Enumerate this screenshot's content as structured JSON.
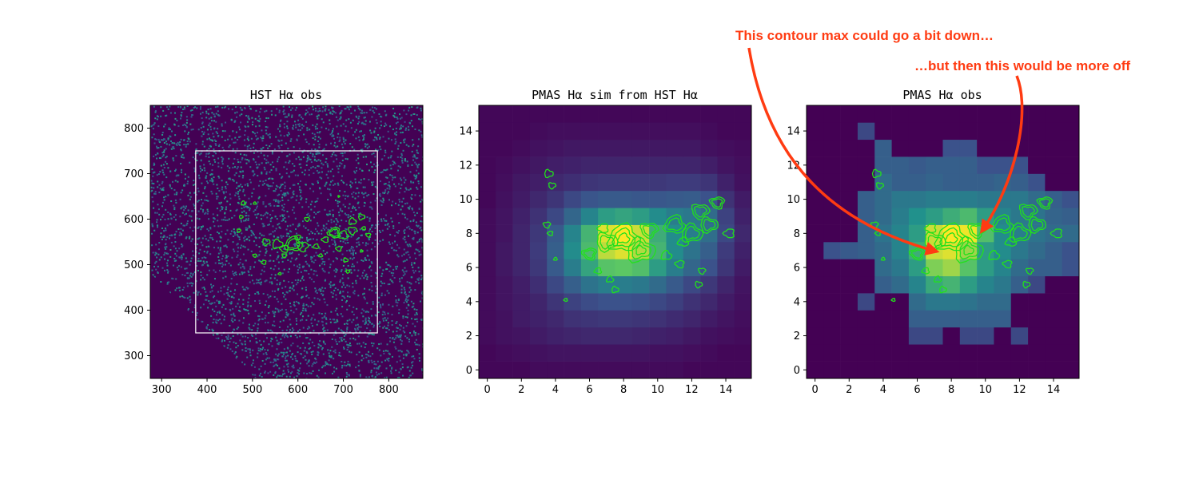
{
  "figure": {
    "colors": {
      "contour": "#22e01c",
      "box": "#ffffff",
      "annotation": "#ff3b12",
      "colormap": [
        "#440154",
        "#3b528b",
        "#21918c",
        "#5ec962",
        "#fde725"
      ]
    },
    "annotations": [
      {
        "text": "This contour max could go a bit down…"
      },
      {
        "text": "…but then this would be more off"
      }
    ]
  },
  "chart_data": [
    {
      "type": "heatmap",
      "title": "HST Hα obs",
      "xlabel": "",
      "ylabel": "",
      "xlim": [
        275,
        875
      ],
      "ylim": [
        250,
        850
      ],
      "xticks": [
        300,
        400,
        500,
        600,
        700,
        800
      ],
      "yticks": [
        300,
        400,
        500,
        600,
        700,
        800
      ],
      "noise_background": true,
      "overlay_box": {
        "x0": 375,
        "x1": 775,
        "y0": 350,
        "y1": 750
      },
      "contour_blobs": [
        {
          "x": 590,
          "y": 545,
          "r": 18
        },
        {
          "x": 555,
          "y": 545,
          "r": 11
        },
        {
          "x": 530,
          "y": 550,
          "r": 8
        },
        {
          "x": 610,
          "y": 540,
          "r": 12
        },
        {
          "x": 570,
          "y": 535,
          "r": 9
        },
        {
          "x": 680,
          "y": 570,
          "r": 13
        },
        {
          "x": 700,
          "y": 565,
          "r": 10
        },
        {
          "x": 720,
          "y": 595,
          "r": 8
        },
        {
          "x": 740,
          "y": 605,
          "r": 7
        },
        {
          "x": 720,
          "y": 575,
          "r": 9
        },
        {
          "x": 755,
          "y": 565,
          "r": 5
        },
        {
          "x": 660,
          "y": 555,
          "r": 7
        },
        {
          "x": 640,
          "y": 540,
          "r": 6
        },
        {
          "x": 480,
          "y": 635,
          "r": 5
        },
        {
          "x": 475,
          "y": 605,
          "r": 4
        },
        {
          "x": 470,
          "y": 575,
          "r": 4
        },
        {
          "x": 505,
          "y": 520,
          "r": 4
        },
        {
          "x": 525,
          "y": 505,
          "r": 5
        },
        {
          "x": 560,
          "y": 480,
          "r": 3
        },
        {
          "x": 505,
          "y": 635,
          "r": 3
        },
        {
          "x": 705,
          "y": 510,
          "r": 5
        },
        {
          "x": 710,
          "y": 485,
          "r": 4
        },
        {
          "x": 620,
          "y": 600,
          "r": 5
        },
        {
          "x": 690,
          "y": 535,
          "r": 6
        },
        {
          "x": 745,
          "y": 580,
          "r": 4
        },
        {
          "x": 650,
          "y": 520,
          "r": 4
        },
        {
          "x": 740,
          "y": 530,
          "r": 3
        },
        {
          "x": 690,
          "y": 650,
          "r": 2
        },
        {
          "x": 570,
          "y": 520,
          "r": 5
        },
        {
          "x": 600,
          "y": 560,
          "r": 6
        }
      ]
    },
    {
      "type": "heatmap",
      "title": "PMAS Hα sim from HST Hα",
      "xlabel": "",
      "ylabel": "",
      "xlim": [
        -0.5,
        15.5
      ],
      "ylim": [
        -0.5,
        15.5
      ],
      "xticks": [
        0,
        2,
        4,
        6,
        8,
        10,
        12,
        14
      ],
      "yticks": [
        0,
        2,
        4,
        6,
        8,
        10,
        12,
        14
      ],
      "grid": [
        [
          0.02,
          0.02,
          0.02,
          0.03,
          0.03,
          0.03,
          0.03,
          0.03,
          0.03,
          0.03,
          0.03,
          0.03,
          0.02,
          0.02,
          0.02,
          0.02
        ],
        [
          0.02,
          0.03,
          0.04,
          0.05,
          0.06,
          0.06,
          0.06,
          0.06,
          0.06,
          0.06,
          0.05,
          0.05,
          0.04,
          0.03,
          0.02,
          0.02
        ],
        [
          0.03,
          0.05,
          0.06,
          0.08,
          0.1,
          0.11,
          0.12,
          0.12,
          0.12,
          0.11,
          0.1,
          0.09,
          0.07,
          0.05,
          0.04,
          0.03
        ],
        [
          0.03,
          0.05,
          0.08,
          0.1,
          0.12,
          0.15,
          0.16,
          0.17,
          0.17,
          0.16,
          0.15,
          0.13,
          0.11,
          0.08,
          0.06,
          0.04
        ],
        [
          0.03,
          0.06,
          0.08,
          0.11,
          0.16,
          0.2,
          0.23,
          0.25,
          0.25,
          0.24,
          0.22,
          0.19,
          0.15,
          0.12,
          0.08,
          0.05
        ],
        [
          0.03,
          0.06,
          0.09,
          0.14,
          0.22,
          0.3,
          0.38,
          0.42,
          0.42,
          0.4,
          0.35,
          0.28,
          0.22,
          0.17,
          0.11,
          0.06
        ],
        [
          0.03,
          0.07,
          0.11,
          0.17,
          0.28,
          0.42,
          0.58,
          0.72,
          0.74,
          0.7,
          0.55,
          0.42,
          0.33,
          0.25,
          0.16,
          0.08
        ],
        [
          0.03,
          0.07,
          0.11,
          0.18,
          0.3,
          0.48,
          0.68,
          0.9,
          0.95,
          0.88,
          0.65,
          0.48,
          0.38,
          0.3,
          0.18,
          0.1
        ],
        [
          0.03,
          0.06,
          0.11,
          0.17,
          0.28,
          0.45,
          0.65,
          0.95,
          1.0,
          0.92,
          0.62,
          0.48,
          0.42,
          0.36,
          0.22,
          0.12
        ],
        [
          0.03,
          0.06,
          0.1,
          0.15,
          0.22,
          0.33,
          0.45,
          0.55,
          0.58,
          0.55,
          0.48,
          0.42,
          0.4,
          0.35,
          0.2,
          0.1
        ],
        [
          0.02,
          0.05,
          0.08,
          0.12,
          0.16,
          0.22,
          0.26,
          0.28,
          0.28,
          0.27,
          0.27,
          0.28,
          0.29,
          0.25,
          0.15,
          0.08
        ],
        [
          0.02,
          0.04,
          0.07,
          0.09,
          0.12,
          0.14,
          0.16,
          0.17,
          0.17,
          0.17,
          0.17,
          0.18,
          0.18,
          0.16,
          0.1,
          0.05
        ],
        [
          0.02,
          0.03,
          0.05,
          0.07,
          0.09,
          0.1,
          0.11,
          0.11,
          0.11,
          0.11,
          0.11,
          0.11,
          0.11,
          0.09,
          0.06,
          0.04
        ],
        [
          0.02,
          0.02,
          0.03,
          0.05,
          0.06,
          0.07,
          0.07,
          0.07,
          0.07,
          0.07,
          0.07,
          0.07,
          0.07,
          0.05,
          0.04,
          0.03
        ],
        [
          0.02,
          0.02,
          0.02,
          0.03,
          0.04,
          0.04,
          0.04,
          0.04,
          0.04,
          0.04,
          0.04,
          0.04,
          0.04,
          0.03,
          0.02,
          0.02
        ],
        [
          0.02,
          0.02,
          0.02,
          0.02,
          0.02,
          0.02,
          0.02,
          0.02,
          0.02,
          0.02,
          0.02,
          0.02,
          0.02,
          0.02,
          0.02,
          0.02
        ]
      ],
      "contour_blobs": [
        {
          "x": 8.0,
          "y": 7.7,
          "r": 0.9
        },
        {
          "x": 9.0,
          "y": 7.0,
          "r": 0.8
        },
        {
          "x": 7.0,
          "y": 7.5,
          "r": 0.6
        },
        {
          "x": 9.5,
          "y": 8.2,
          "r": 0.5
        },
        {
          "x": 6.0,
          "y": 6.8,
          "r": 0.4
        },
        {
          "x": 6.8,
          "y": 8.3,
          "r": 0.3
        },
        {
          "x": 11.0,
          "y": 8.5,
          "r": 0.6
        },
        {
          "x": 12.0,
          "y": 8.0,
          "r": 0.6
        },
        {
          "x": 13.0,
          "y": 8.5,
          "r": 0.5
        },
        {
          "x": 12.5,
          "y": 9.3,
          "r": 0.5
        },
        {
          "x": 13.5,
          "y": 9.8,
          "r": 0.4
        },
        {
          "x": 14.2,
          "y": 8.0,
          "r": 0.3
        },
        {
          "x": 11.5,
          "y": 7.5,
          "r": 0.3
        },
        {
          "x": 10.5,
          "y": 6.7,
          "r": 0.3
        },
        {
          "x": 3.6,
          "y": 11.5,
          "r": 0.25
        },
        {
          "x": 3.8,
          "y": 10.8,
          "r": 0.2
        },
        {
          "x": 3.5,
          "y": 8.5,
          "r": 0.2
        },
        {
          "x": 3.7,
          "y": 8.0,
          "r": 0.15
        },
        {
          "x": 6.5,
          "y": 5.8,
          "r": 0.2
        },
        {
          "x": 7.2,
          "y": 5.3,
          "r": 0.2
        },
        {
          "x": 7.5,
          "y": 4.7,
          "r": 0.2
        },
        {
          "x": 12.4,
          "y": 5.0,
          "r": 0.2
        },
        {
          "x": 12.6,
          "y": 5.8,
          "r": 0.2
        },
        {
          "x": 11.3,
          "y": 6.2,
          "r": 0.25
        },
        {
          "x": 4.6,
          "y": 4.1,
          "r": 0.1
        },
        {
          "x": 4.0,
          "y": 6.5,
          "r": 0.1
        }
      ]
    },
    {
      "type": "heatmap",
      "title": "PMAS Hα obs",
      "xlabel": "",
      "ylabel": "",
      "xlim": [
        -0.5,
        15.5
      ],
      "ylim": [
        -0.5,
        15.5
      ],
      "xticks": [
        0,
        2,
        4,
        6,
        8,
        10,
        12,
        14
      ],
      "yticks": [
        0,
        2,
        4,
        6,
        8,
        10,
        12,
        14
      ],
      "grid": [
        [
          0,
          0,
          0,
          0,
          0,
          0,
          0,
          0,
          0,
          0,
          0,
          0,
          0,
          0,
          0,
          0
        ],
        [
          0,
          0,
          0,
          0,
          0,
          0,
          0,
          0,
          0,
          0,
          0,
          0,
          0,
          0,
          0,
          0
        ],
        [
          0,
          0,
          0,
          0,
          0,
          0,
          0.22,
          0.22,
          0,
          0.22,
          0.22,
          0,
          0.22,
          0,
          0,
          0
        ],
        [
          0,
          0,
          0,
          0,
          0,
          0,
          0.3,
          0.3,
          0.3,
          0.3,
          0.3,
          0.3,
          0,
          0,
          0,
          0
        ],
        [
          0,
          0,
          0,
          0.22,
          0,
          0,
          0.35,
          0.4,
          0.4,
          0.38,
          0.35,
          0.35,
          0,
          0,
          0,
          0
        ],
        [
          0,
          0,
          0,
          0,
          0.3,
          0.35,
          0.45,
          0.6,
          0.65,
          0.55,
          0.45,
          0.4,
          0.3,
          0.22,
          0,
          0
        ],
        [
          0,
          0,
          0,
          0,
          0.35,
          0.4,
          0.55,
          0.8,
          0.85,
          0.72,
          0.55,
          0.45,
          0.35,
          0.3,
          0.3,
          0.25
        ],
        [
          0,
          0.25,
          0.28,
          0.3,
          0.35,
          0.45,
          0.62,
          0.92,
          0.95,
          0.85,
          0.55,
          0.48,
          0.4,
          0.35,
          0.3,
          0.25
        ],
        [
          0,
          0,
          0,
          0.3,
          0.38,
          0.45,
          0.55,
          0.92,
          1.0,
          0.98,
          0.7,
          0.48,
          0.42,
          0.38,
          0.35,
          0.35
        ],
        [
          0,
          0,
          0,
          0.3,
          0.35,
          0.42,
          0.5,
          0.55,
          0.62,
          0.68,
          0.55,
          0.45,
          0.4,
          0.38,
          0.32,
          0.3
        ],
        [
          0,
          0,
          0,
          0.3,
          0.35,
          0.4,
          0.4,
          0.42,
          0.42,
          0.42,
          0.4,
          0.4,
          0.4,
          0.35,
          0.3,
          0.25
        ],
        [
          0,
          0,
          0,
          0,
          0.35,
          0.3,
          0.3,
          0.32,
          0.3,
          0.3,
          0.3,
          0.32,
          0.3,
          0.25,
          0,
          0
        ],
        [
          0,
          0,
          0,
          0,
          0.3,
          0.3,
          0.28,
          0.3,
          0.3,
          0.3,
          0.25,
          0.25,
          0.25,
          0,
          0,
          0
        ],
        [
          0,
          0,
          0,
          0,
          0.3,
          0,
          0,
          0,
          0.25,
          0.25,
          0,
          0,
          0,
          0,
          0,
          0
        ],
        [
          0,
          0,
          0,
          0.22,
          0,
          0,
          0,
          0,
          0,
          0,
          0,
          0,
          0,
          0,
          0,
          0
        ],
        [
          0,
          0,
          0,
          0,
          0,
          0,
          0,
          0,
          0,
          0,
          0,
          0,
          0,
          0,
          0,
          0
        ]
      ],
      "contour_blobs": [
        {
          "x": 8.0,
          "y": 7.7,
          "r": 0.9
        },
        {
          "x": 9.0,
          "y": 7.0,
          "r": 0.8
        },
        {
          "x": 7.0,
          "y": 7.5,
          "r": 0.6
        },
        {
          "x": 9.5,
          "y": 8.2,
          "r": 0.5
        },
        {
          "x": 6.0,
          "y": 6.8,
          "r": 0.4
        },
        {
          "x": 6.8,
          "y": 8.3,
          "r": 0.3
        },
        {
          "x": 11.0,
          "y": 8.5,
          "r": 0.6
        },
        {
          "x": 12.0,
          "y": 8.0,
          "r": 0.6
        },
        {
          "x": 13.0,
          "y": 8.5,
          "r": 0.5
        },
        {
          "x": 12.5,
          "y": 9.3,
          "r": 0.5
        },
        {
          "x": 13.5,
          "y": 9.8,
          "r": 0.4
        },
        {
          "x": 14.2,
          "y": 8.0,
          "r": 0.3
        },
        {
          "x": 11.5,
          "y": 7.5,
          "r": 0.3
        },
        {
          "x": 10.5,
          "y": 6.7,
          "r": 0.3
        },
        {
          "x": 3.6,
          "y": 11.5,
          "r": 0.25
        },
        {
          "x": 3.8,
          "y": 10.8,
          "r": 0.2
        },
        {
          "x": 3.5,
          "y": 8.5,
          "r": 0.2
        },
        {
          "x": 3.7,
          "y": 8.0,
          "r": 0.15
        },
        {
          "x": 6.5,
          "y": 5.8,
          "r": 0.2
        },
        {
          "x": 7.2,
          "y": 5.3,
          "r": 0.2
        },
        {
          "x": 7.5,
          "y": 4.7,
          "r": 0.2
        },
        {
          "x": 12.4,
          "y": 5.0,
          "r": 0.2
        },
        {
          "x": 12.6,
          "y": 5.8,
          "r": 0.2
        },
        {
          "x": 11.3,
          "y": 6.2,
          "r": 0.25
        },
        {
          "x": 4.6,
          "y": 4.1,
          "r": 0.1
        },
        {
          "x": 4.0,
          "y": 6.5,
          "r": 0.1
        }
      ]
    }
  ]
}
